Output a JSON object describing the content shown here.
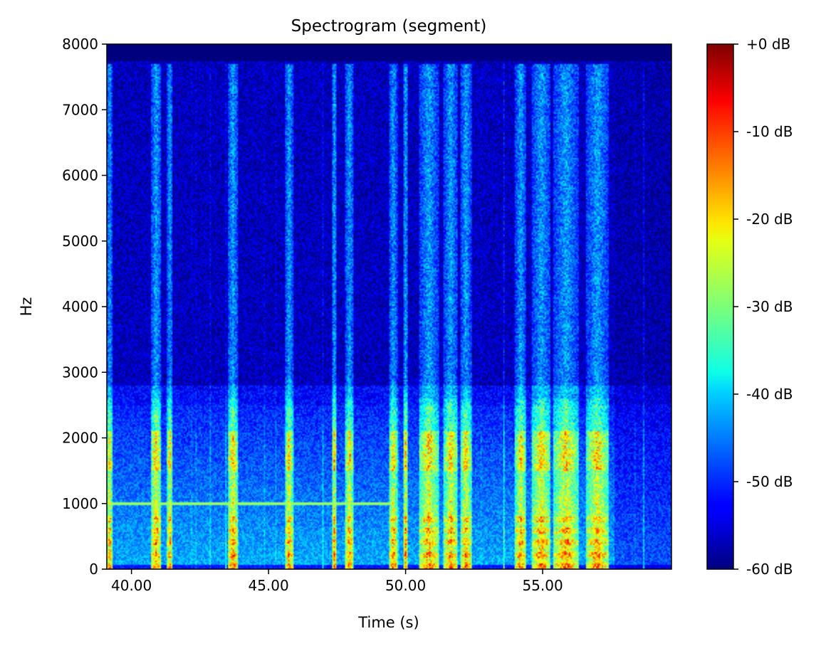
{
  "chart_data": {
    "type": "heatmap",
    "title": "Spectrogram (segment)",
    "xlabel": "Time (s)",
    "ylabel": "Hz",
    "xlim": [
      39.1,
      59.7
    ],
    "ylim": [
      0,
      8000
    ],
    "x_ticks": [
      40,
      45,
      50,
      55
    ],
    "x_tick_labels": [
      "40.00",
      "45.00",
      "50.00",
      "55.00"
    ],
    "y_ticks": [
      0,
      1000,
      2000,
      3000,
      4000,
      5000,
      6000,
      7000,
      8000
    ],
    "y_tick_labels": [
      "0",
      "1000",
      "2000",
      "3000",
      "4000",
      "5000",
      "6000",
      "7000",
      "8000"
    ],
    "colormap": "jet",
    "colorbar": {
      "range_db": [
        -60,
        0
      ],
      "ticks": [
        0,
        -10,
        -20,
        -30,
        -40,
        -50,
        -60
      ],
      "tick_labels": [
        "+0 dB",
        "-10 dB",
        "-20 dB",
        "-30 dB",
        "-40 dB",
        "-50 dB",
        "-60 dB"
      ]
    },
    "hum_line_hz": 1000,
    "hum_line_end_s": 49.6,
    "speech_bursts_s": [
      [
        39.1,
        39.3
      ],
      [
        40.7,
        41.1
      ],
      [
        41.3,
        41.5
      ],
      [
        43.5,
        43.9
      ],
      [
        45.6,
        45.9
      ],
      [
        47.3,
        47.5
      ],
      [
        47.8,
        48.1
      ],
      [
        49.4,
        49.7
      ],
      [
        49.9,
        50.1
      ],
      [
        50.5,
        51.2
      ],
      [
        51.4,
        51.9
      ],
      [
        52.0,
        52.4
      ],
      [
        54.0,
        54.4
      ],
      [
        54.6,
        55.3
      ],
      [
        55.4,
        56.3
      ],
      [
        56.6,
        57.4
      ]
    ],
    "grid": false
  }
}
